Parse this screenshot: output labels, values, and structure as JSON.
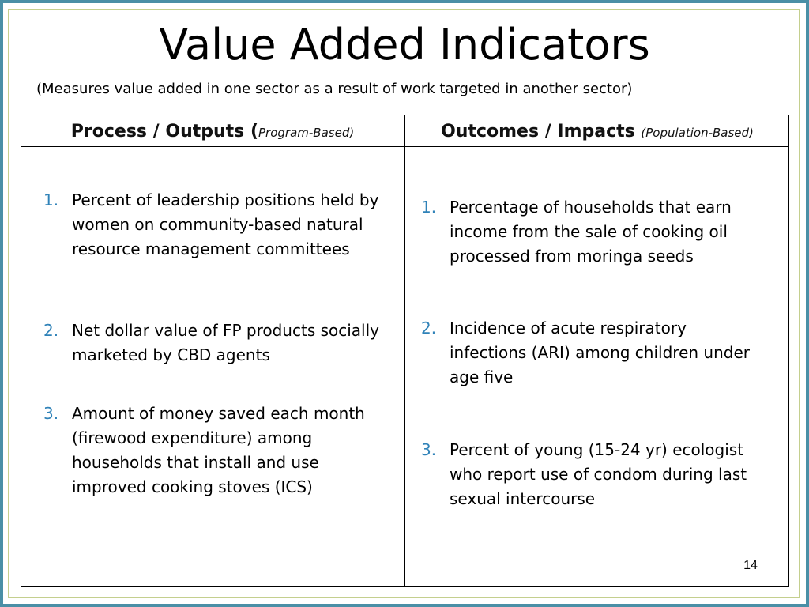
{
  "title": "Value Added Indicators",
  "subtitle": "(Measures value added in one sector as a result of work targeted in another sector)",
  "columns": {
    "left": {
      "heading": "Process / Outputs ",
      "heading_open": "(",
      "heading_sub": "Program-Based)",
      "items": [
        {
          "num": "1.",
          "text": "Percent of leadership positions held by women on community-based natural resource management committees"
        },
        {
          "num": "2.",
          "text": "Net dollar value of FP products socially marketed by CBD agents"
        },
        {
          "num": "3.",
          "text": "Amount of money saved each month (firewood expenditure) among  households that install and use improved cooking stoves (ICS)"
        }
      ]
    },
    "right": {
      "heading": "Outcomes / Impacts ",
      "heading_sub": "(Population-Based)",
      "items": [
        {
          "num": "1.",
          "text": "Percentage of households that earn income from the sale of cooking oil processed from moringa seeds"
        },
        {
          "num": "2.",
          "text": "Incidence of acute respiratory infections (ARI) among children under age five"
        },
        {
          "num": "3.",
          "text": "Percent of young (15-24 yr) ecologist who report use of condom during last sexual intercourse"
        }
      ]
    }
  },
  "page_number": "14",
  "colors": {
    "outer_border": "#4a8fa6",
    "inner_border": "#c4cf8e",
    "list_number": "#2f82b8"
  }
}
